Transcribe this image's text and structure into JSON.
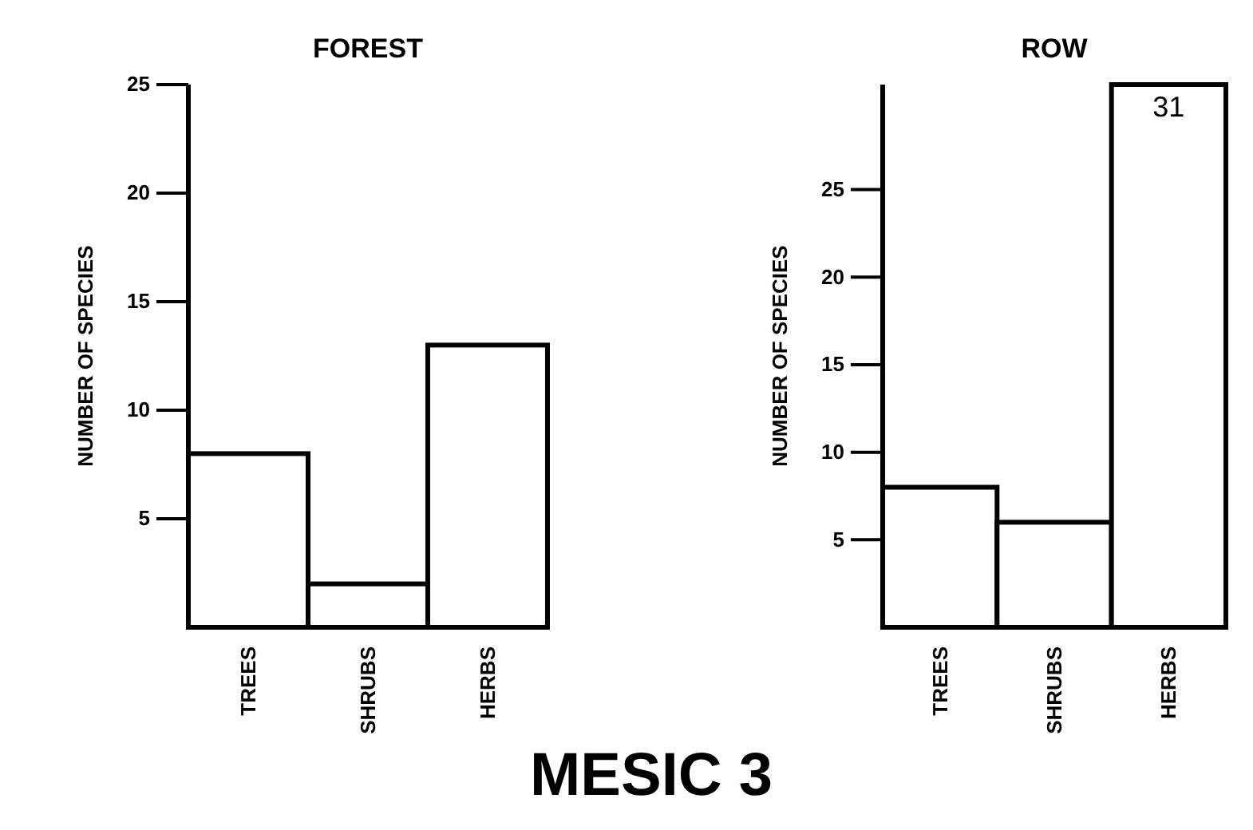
{
  "chart_data": [
    {
      "type": "bar",
      "title": "FOREST",
      "ylabel": "NUMBER OF SPECIES",
      "categories": [
        "TREES",
        "SHRUBS",
        "HERBS"
      ],
      "values": [
        8,
        2,
        13
      ],
      "color": "#ffffff",
      "ylim": [
        0,
        25
      ],
      "yticks": [
        5,
        10,
        15,
        20,
        25
      ],
      "annotations": [
        "MESIC 3"
      ]
    },
    {
      "type": "bar",
      "title": "ROW",
      "ylabel": "NUMBER OF SPECIES",
      "categories": [
        "TREES",
        "SHRUBS",
        "HERBS"
      ],
      "values": [
        8,
        6,
        31
      ],
      "value_labels": [
        null,
        null,
        "31"
      ],
      "color": "#ffffff",
      "ylim": [
        0,
        31
      ],
      "yticks": [
        5,
        10,
        15,
        20,
        25
      ]
    }
  ]
}
